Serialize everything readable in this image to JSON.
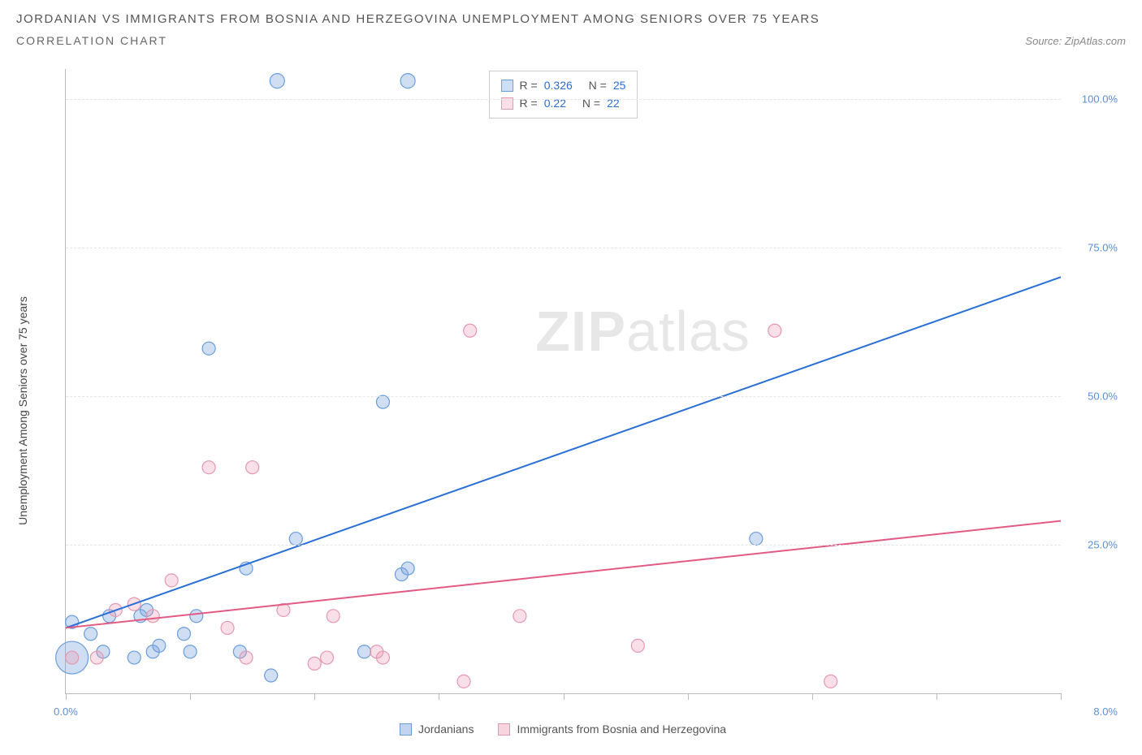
{
  "header": {
    "title": "JORDANIAN VS IMMIGRANTS FROM BOSNIA AND HERZEGOVINA UNEMPLOYMENT AMONG SENIORS OVER 75 YEARS",
    "subtitle": "CORRELATION CHART",
    "source_label": "Source:",
    "source_value": "ZipAtlas.com"
  },
  "chart": {
    "type": "scatter",
    "y_axis_label": "Unemployment Among Seniors over 75 years",
    "xlim": [
      0,
      8
    ],
    "ylim": [
      0,
      105
    ],
    "xticks": [
      0,
      1,
      2,
      3,
      4,
      5,
      6,
      7,
      8
    ],
    "yticks": [
      25,
      50,
      75,
      100
    ],
    "ytick_labels": [
      "25.0%",
      "50.0%",
      "75.0%",
      "100.0%"
    ],
    "x_min_label": "0.0%",
    "x_max_label": "8.0%",
    "grid_color": "#e5e5e5",
    "axis_color": "#bbbbbb",
    "background_color": "#ffffff",
    "tick_label_color": "#5a8fd6",
    "axis_label_color": "#444444",
    "axis_label_fontsize": 14,
    "tick_label_fontsize": 13,
    "watermark": "ZIPatlas",
    "series": [
      {
        "name": "Jordanians",
        "color_fill": "rgba(120,160,220,0.35)",
        "color_stroke": "#6a9edb",
        "line_color": "#2a6fd6",
        "line_width": 2,
        "marker_radius": 8,
        "R": 0.326,
        "N": 25,
        "trend": {
          "x1": 0,
          "y1": 11,
          "x2": 8,
          "y2": 70
        },
        "points": [
          {
            "x": 0.05,
            "y": 6,
            "r": 20
          },
          {
            "x": 0.05,
            "y": 12,
            "r": 8
          },
          {
            "x": 0.2,
            "y": 10,
            "r": 8
          },
          {
            "x": 0.3,
            "y": 7,
            "r": 8
          },
          {
            "x": 0.35,
            "y": 13,
            "r": 8
          },
          {
            "x": 0.55,
            "y": 6,
            "r": 8
          },
          {
            "x": 0.6,
            "y": 13,
            "r": 8
          },
          {
            "x": 0.65,
            "y": 14,
            "r": 8
          },
          {
            "x": 0.7,
            "y": 7,
            "r": 8
          },
          {
            "x": 0.95,
            "y": 10,
            "r": 8
          },
          {
            "x": 1.0,
            "y": 7,
            "r": 8
          },
          {
            "x": 1.05,
            "y": 13,
            "r": 8
          },
          {
            "x": 1.15,
            "y": 58,
            "r": 8
          },
          {
            "x": 1.4,
            "y": 7,
            "r": 8
          },
          {
            "x": 1.45,
            "y": 21,
            "r": 8
          },
          {
            "x": 1.65,
            "y": 3,
            "r": 8
          },
          {
            "x": 1.7,
            "y": 103,
            "r": 9
          },
          {
            "x": 1.85,
            "y": 26,
            "r": 8
          },
          {
            "x": 2.4,
            "y": 7,
            "r": 8
          },
          {
            "x": 2.55,
            "y": 49,
            "r": 8
          },
          {
            "x": 2.75,
            "y": 103,
            "r": 9
          },
          {
            "x": 2.7,
            "y": 20,
            "r": 8
          },
          {
            "x": 2.75,
            "y": 21,
            "r": 8
          },
          {
            "x": 5.55,
            "y": 26,
            "r": 8
          },
          {
            "x": 0.75,
            "y": 8,
            "r": 8
          }
        ]
      },
      {
        "name": "Immigrants from Bosnia and Herzegovina",
        "color_fill": "rgba(235,150,175,0.30)",
        "color_stroke": "#e598af",
        "line_color": "#e35a84",
        "line_width": 2,
        "marker_radius": 8,
        "R": 0.22,
        "N": 22,
        "trend": {
          "x1": 0,
          "y1": 11,
          "x2": 8,
          "y2": 29
        },
        "points": [
          {
            "x": 0.05,
            "y": 6,
            "r": 8
          },
          {
            "x": 0.25,
            "y": 6,
            "r": 8
          },
          {
            "x": 0.4,
            "y": 14,
            "r": 8
          },
          {
            "x": 0.55,
            "y": 15,
            "r": 8
          },
          {
            "x": 0.7,
            "y": 13,
            "r": 8
          },
          {
            "x": 0.85,
            "y": 19,
            "r": 8
          },
          {
            "x": 1.15,
            "y": 38,
            "r": 8
          },
          {
            "x": 1.45,
            "y": 6,
            "r": 8
          },
          {
            "x": 1.5,
            "y": 38,
            "r": 8
          },
          {
            "x": 1.75,
            "y": 14,
            "r": 8
          },
          {
            "x": 2.0,
            "y": 5,
            "r": 8
          },
          {
            "x": 2.1,
            "y": 6,
            "r": 8
          },
          {
            "x": 2.15,
            "y": 13,
            "r": 8
          },
          {
            "x": 2.5,
            "y": 7,
            "r": 8
          },
          {
            "x": 2.55,
            "y": 6,
            "r": 8
          },
          {
            "x": 3.2,
            "y": 2,
            "r": 8
          },
          {
            "x": 3.25,
            "y": 61,
            "r": 8
          },
          {
            "x": 3.65,
            "y": 13,
            "r": 8
          },
          {
            "x": 4.6,
            "y": 8,
            "r": 8
          },
          {
            "x": 5.7,
            "y": 61,
            "r": 8
          },
          {
            "x": 6.15,
            "y": 2,
            "r": 8
          },
          {
            "x": 1.3,
            "y": 11,
            "r": 8
          }
        ]
      }
    ],
    "stats_labels": {
      "R": "R =",
      "N": "N ="
    },
    "legend": {
      "items": [
        {
          "label": "Jordanians",
          "swatch_fill": "rgba(120,160,220,0.45)",
          "swatch_border": "#6a9edb"
        },
        {
          "label": "Immigrants from Bosnia and Herzegovina",
          "swatch_fill": "rgba(235,150,175,0.40)",
          "swatch_border": "#e598af"
        }
      ]
    }
  }
}
